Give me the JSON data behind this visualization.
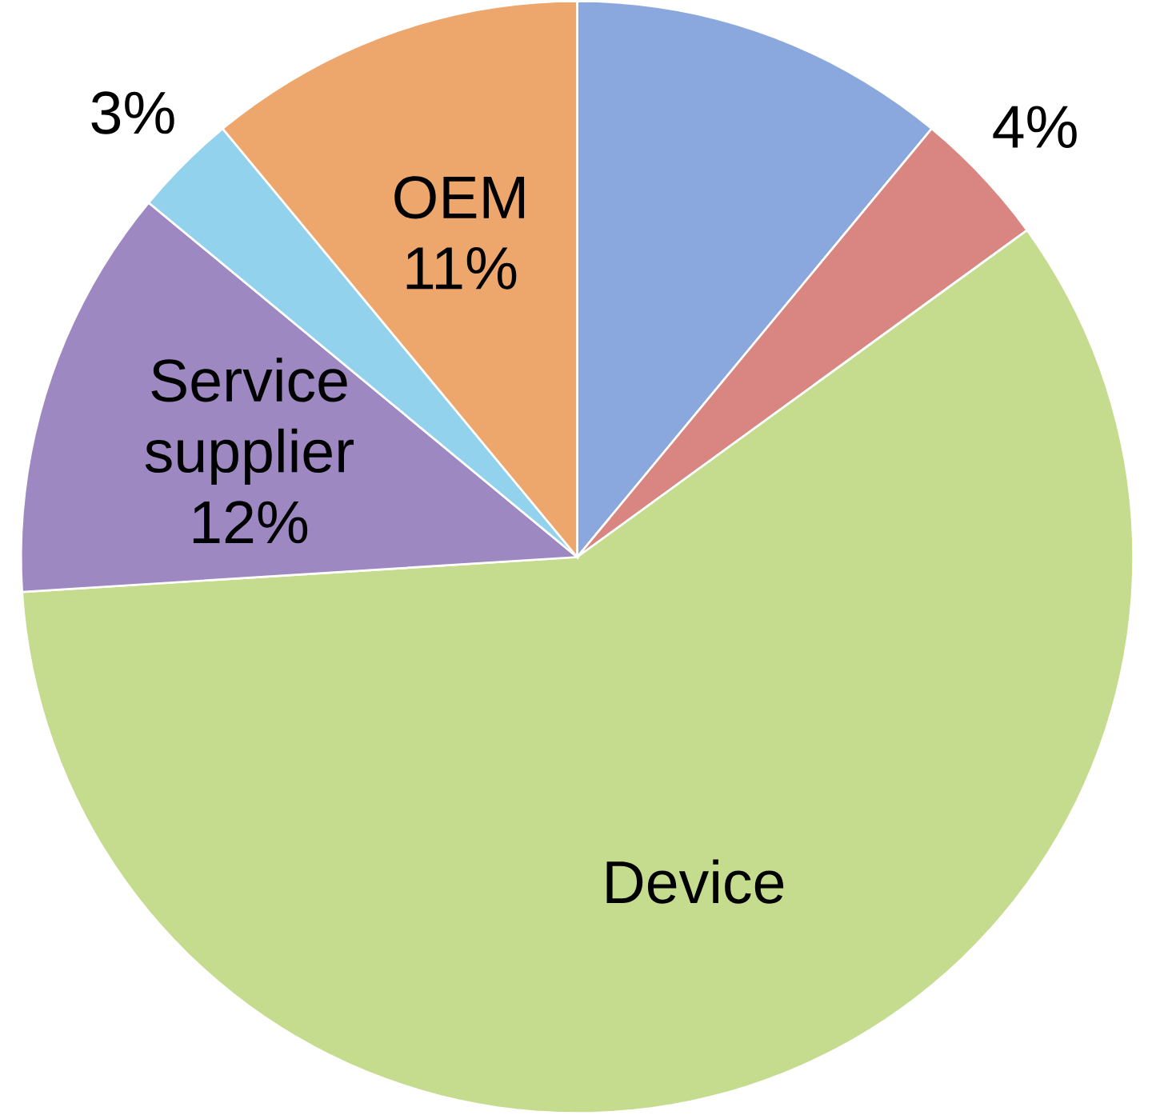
{
  "chart_data": {
    "type": "pie",
    "categories": [
      null,
      null,
      "Device",
      "Service supplier",
      null,
      "OEM"
    ],
    "values": [
      11,
      4,
      59,
      12,
      3,
      11
    ],
    "value_labels": [
      null,
      "4%",
      null,
      "12%",
      "3%",
      "11%"
    ],
    "colors": [
      "#8ba8de",
      "#d98682",
      "#c5db8e",
      "#9d88c2",
      "#92d2ec",
      "#eda66b"
    ]
  }
}
